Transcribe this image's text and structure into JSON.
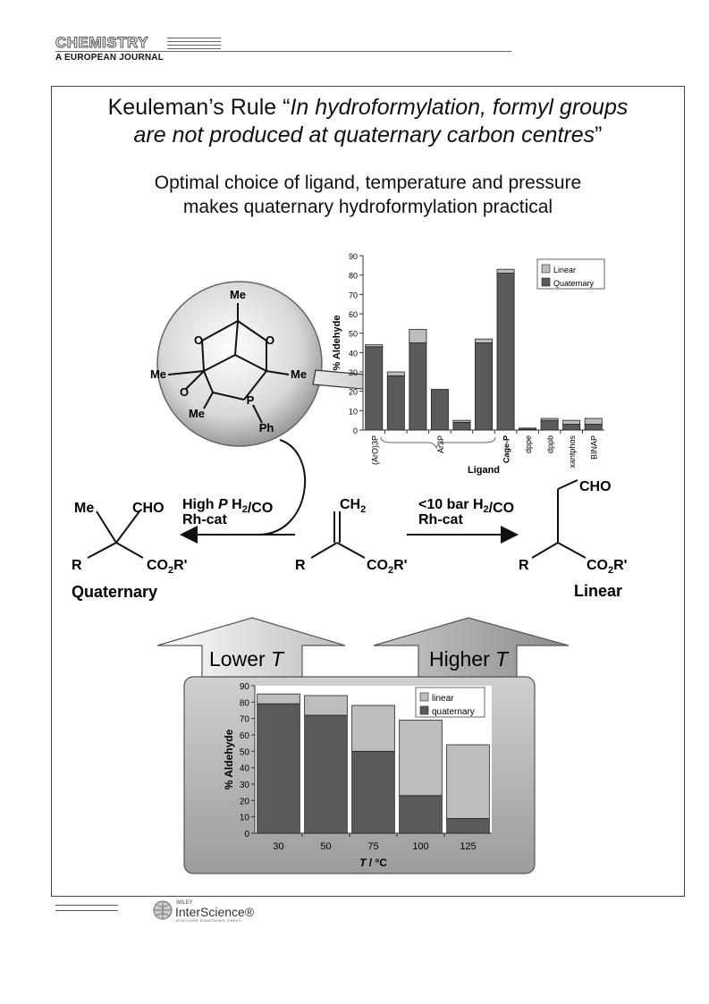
{
  "journal": {
    "name": "CHEMISTRY",
    "subtitle": "A EUROPEAN JOURNAL"
  },
  "figure": {
    "title_line1": "Keuleman’s Rule “In hydroformylation, formyl groups",
    "title_line2": "are not produced at quaternary carbon centres”",
    "subtitle_line1": "Optimal choice of ligand, temperature and pressure",
    "subtitle_line2": "makes quaternary hydroformylation practical",
    "ligand_labels": {
      "me_top": "Me",
      "me_left": "Me",
      "me_right": "Me",
      "me_bottom": "Me",
      "o1": "O",
      "o2": "O",
      "o3": "O",
      "p": "P",
      "ph": "Ph"
    },
    "scheme": {
      "left_condition_1": "High P H2/CO",
      "left_condition_2": "Rh-cat",
      "right_condition_1": "<10 bar H2/CO",
      "right_condition_2": "Rh-cat",
      "product_left_label": "Quaternary",
      "product_right_label": "Linear",
      "me": "Me",
      "cho": "CHO",
      "r": "R",
      "co2r": "CO2R'",
      "ch2": "CH2"
    },
    "lower_t": "Lower T",
    "higher_t": "Higher T"
  },
  "chart_data": [
    {
      "type": "bar",
      "stacked": true,
      "categories": [
        "(ArO)3P",
        "",
        "",
        "Ar3P",
        "",
        "",
        "Cage-P",
        "dppe",
        "dppb",
        "xantphos",
        "BINAP"
      ],
      "series": [
        {
          "name": "Quaternary",
          "values": [
            43,
            28,
            45,
            21,
            4,
            45,
            81,
            0.5,
            5,
            3,
            3
          ],
          "color": "#5a5a5a"
        },
        {
          "name": "Linear",
          "values": [
            1,
            2,
            7,
            0,
            1,
            2,
            2,
            0.5,
            1,
            2,
            3
          ],
          "color": "#bdbdbd"
        }
      ],
      "xlabel": "Ligand",
      "ylabel": "% Aldehyde",
      "ylim": [
        0,
        90
      ],
      "yticks": [
        0,
        10,
        20,
        30,
        40,
        50,
        60,
        70,
        80,
        90
      ],
      "legend": "top-right",
      "grid": false
    },
    {
      "type": "bar",
      "stacked": true,
      "categories": [
        "30",
        "50",
        "75",
        "100",
        "125"
      ],
      "series": [
        {
          "name": "quaternary",
          "values": [
            79,
            72,
            50,
            23,
            9
          ],
          "color": "#5a5a5a"
        },
        {
          "name": "linear",
          "values": [
            6,
            12,
            28,
            46,
            45
          ],
          "color": "#bdbdbd"
        }
      ],
      "xlabel": "T / °C",
      "ylabel": "% Aldehyde",
      "ylim": [
        0,
        90
      ],
      "yticks": [
        0,
        10,
        20,
        30,
        40,
        50,
        60,
        70,
        80,
        90
      ],
      "legend": "top-right",
      "grid": false
    }
  ],
  "footer": {
    "publisher_small": "WILEY",
    "publisher": "InterScience®",
    "tagline": "DISCOVER SOMETHING GREAT"
  }
}
